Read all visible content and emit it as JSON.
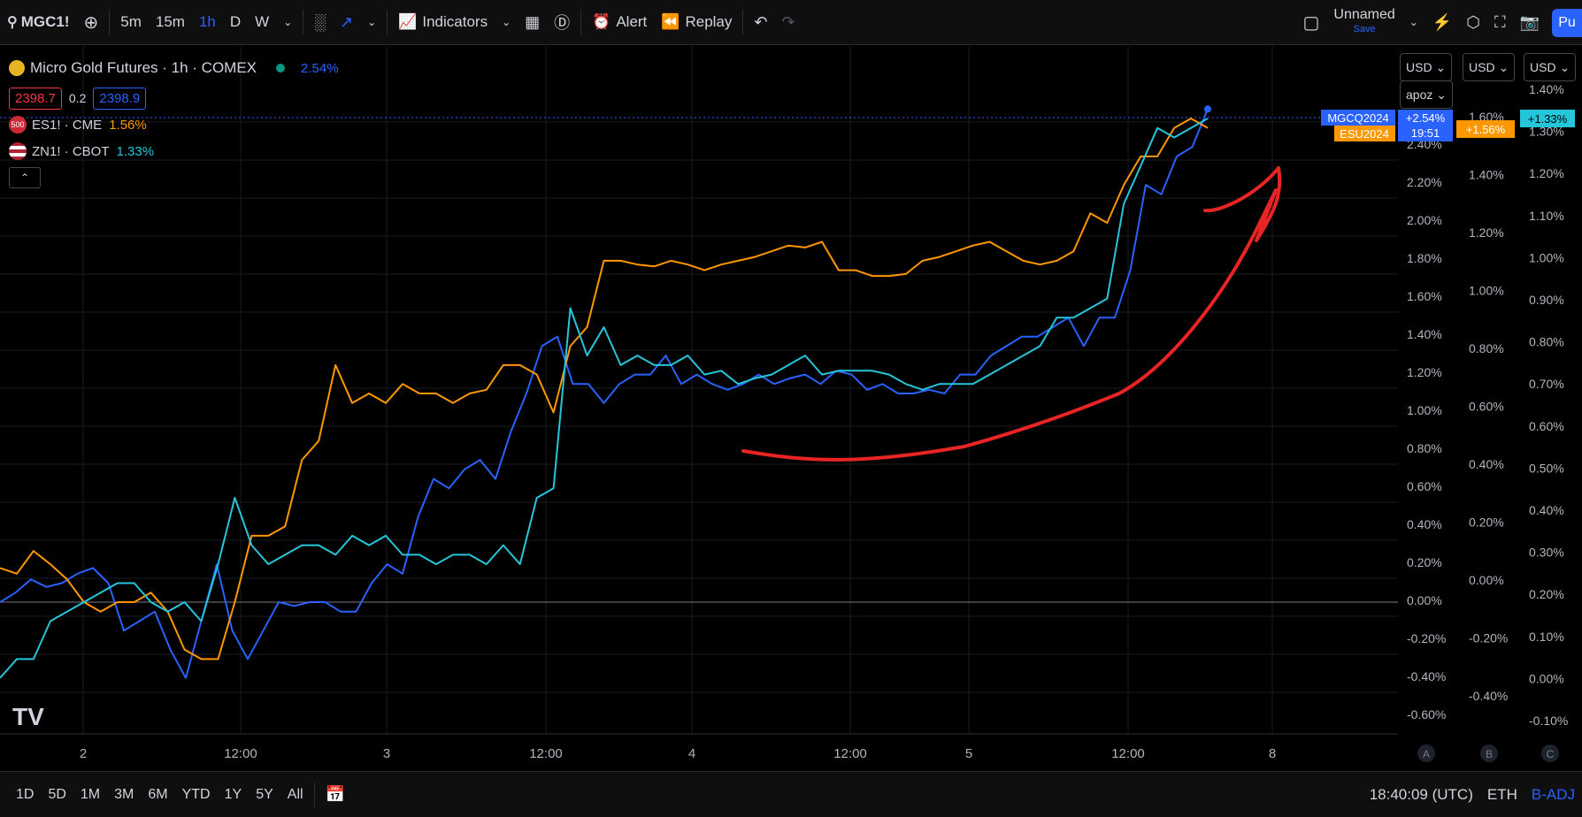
{
  "toolbar": {
    "symbol": "MGC1!",
    "intervals": [
      "5m",
      "15m",
      "1h",
      "D",
      "W"
    ],
    "active_interval": "1h",
    "indicators": "Indicators",
    "alert": "Alert",
    "replay": "Replay",
    "layout_name": "Unnamed",
    "layout_save": "Save",
    "publish": "Pu"
  },
  "legend": {
    "main": {
      "title": "Micro Gold Futures · 1h · COMEX",
      "change": "2.54%",
      "bid": "2398.7",
      "spread": "0.2",
      "ask": "2398.9"
    },
    "compare": [
      {
        "icon": "500",
        "name": "ES1! · CME",
        "change": "1.56%",
        "color": "#ff9800"
      },
      {
        "icon": "us-flag",
        "name": "ZN1! · CBOT",
        "change": "1.33%",
        "color": "#26c6da"
      }
    ]
  },
  "scales": {
    "currency": [
      "USD",
      "USD",
      "USD"
    ],
    "mode": "apoz",
    "a_labels": [
      "2.40%",
      "2.20%",
      "2.00%",
      "1.80%",
      "1.60%",
      "1.40%",
      "1.20%",
      "1.00%",
      "0.80%",
      "0.60%",
      "0.40%",
      "0.20%",
      "0.00%",
      "-0.20%",
      "-0.40%",
      "-0.60%"
    ],
    "b_labels": [
      "1.60%",
      "1.40%",
      "1.20%",
      "1.00%",
      "0.80%",
      "0.60%",
      "0.40%",
      "0.20%",
      "0.00%",
      "-0.20%",
      "-0.40%"
    ],
    "c_labels": [
      "1.40%",
      "1.30%",
      "1.20%",
      "1.10%",
      "1.00%",
      "0.90%",
      "0.80%",
      "0.70%",
      "0.60%",
      "0.50%",
      "0.40%",
      "0.30%",
      "0.20%",
      "0.10%",
      "0.00%",
      "-0.10%"
    ],
    "letters": [
      "A",
      "B",
      "C"
    ]
  },
  "price_tags": {
    "mgc": {
      "name": "MGCQ2024",
      "value": "+2.54%",
      "time": "19:51",
      "color": "#2962ff"
    },
    "es": {
      "name": "ESU2024",
      "value": "+1.56%",
      "color": "#ff9800"
    },
    "zn": {
      "value": "+1.33%",
      "color": "#26c6da"
    }
  },
  "time_axis": [
    "2",
    "12:00",
    "3",
    "12:00",
    "4",
    "12:00",
    "5",
    "12:00",
    "8"
  ],
  "bottom": {
    "ranges": [
      "1D",
      "5D",
      "1M",
      "3M",
      "6M",
      "YTD",
      "1Y",
      "5Y",
      "All"
    ],
    "clock": "18:40:09 (UTC)",
    "session": "ETH",
    "adj": "B-ADJ"
  },
  "chart_data": {
    "type": "line",
    "ylim": [
      -0.7,
      2.5
    ],
    "series": [
      {
        "name": "MGC1!",
        "color": "#2962ff",
        "values": [
          0.0,
          0.05,
          0.12,
          0.08,
          0.1,
          0.15,
          0.18,
          0.1,
          -0.15,
          -0.1,
          -0.05,
          -0.25,
          -0.4,
          -0.1,
          0.2,
          -0.15,
          -0.3,
          -0.15,
          0.0,
          -0.02,
          0.0,
          0.0,
          -0.05,
          -0.05,
          0.1,
          0.2,
          0.15,
          0.45,
          0.65,
          0.6,
          0.7,
          0.75,
          0.65,
          0.9,
          1.1,
          1.35,
          1.4,
          1.15,
          1.15,
          1.05,
          1.15,
          1.2,
          1.2,
          1.3,
          1.15,
          1.2,
          1.15,
          1.12,
          1.15,
          1.2,
          1.15,
          1.18,
          1.2,
          1.15,
          1.22,
          1.2,
          1.12,
          1.15,
          1.1,
          1.1,
          1.12,
          1.1,
          1.2,
          1.2,
          1.3,
          1.35,
          1.4,
          1.4,
          1.45,
          1.5,
          1.35,
          1.5,
          1.5,
          1.75,
          2.2,
          2.15,
          2.35,
          2.4,
          2.6
        ]
      },
      {
        "name": "ES1!",
        "color": "#ff9800",
        "values": [
          0.18,
          0.15,
          0.27,
          0.2,
          0.12,
          0.0,
          -0.05,
          0.0,
          0.0,
          0.05,
          -0.05,
          -0.25,
          -0.3,
          -0.3,
          0.0,
          0.35,
          0.35,
          0.4,
          0.75,
          0.85,
          1.25,
          1.05,
          1.1,
          1.05,
          1.15,
          1.1,
          1.1,
          1.05,
          1.1,
          1.12,
          1.25,
          1.25,
          1.2,
          1.0,
          1.35,
          1.45,
          1.8,
          1.8,
          1.78,
          1.77,
          1.8,
          1.78,
          1.75,
          1.78,
          1.8,
          1.82,
          1.85,
          1.88,
          1.87,
          1.9,
          1.75,
          1.75,
          1.72,
          1.72,
          1.73,
          1.8,
          1.82,
          1.85,
          1.88,
          1.9,
          1.85,
          1.8,
          1.78,
          1.8,
          1.85,
          2.05,
          2.0,
          2.2,
          2.35,
          2.35,
          2.5,
          2.55,
          2.5
        ]
      },
      {
        "name": "ZN1!",
        "color": "#26c6da",
        "values": [
          -0.4,
          -0.3,
          -0.3,
          -0.1,
          -0.05,
          0.0,
          0.05,
          0.1,
          0.1,
          0.0,
          -0.05,
          0.0,
          -0.1,
          0.2,
          0.55,
          0.3,
          0.2,
          0.25,
          0.3,
          0.3,
          0.25,
          0.35,
          0.3,
          0.35,
          0.25,
          0.25,
          0.2,
          0.25,
          0.25,
          0.2,
          0.3,
          0.2,
          0.55,
          0.6,
          1.55,
          1.3,
          1.45,
          1.25,
          1.3,
          1.25,
          1.25,
          1.3,
          1.2,
          1.22,
          1.15,
          1.18,
          1.2,
          1.25,
          1.3,
          1.2,
          1.22,
          1.22,
          1.22,
          1.2,
          1.15,
          1.12,
          1.15,
          1.15,
          1.15,
          1.2,
          1.25,
          1.3,
          1.35,
          1.5,
          1.5,
          1.55,
          1.6,
          2.1,
          2.3,
          2.5,
          2.45,
          2.5,
          2.55
        ]
      }
    ]
  }
}
